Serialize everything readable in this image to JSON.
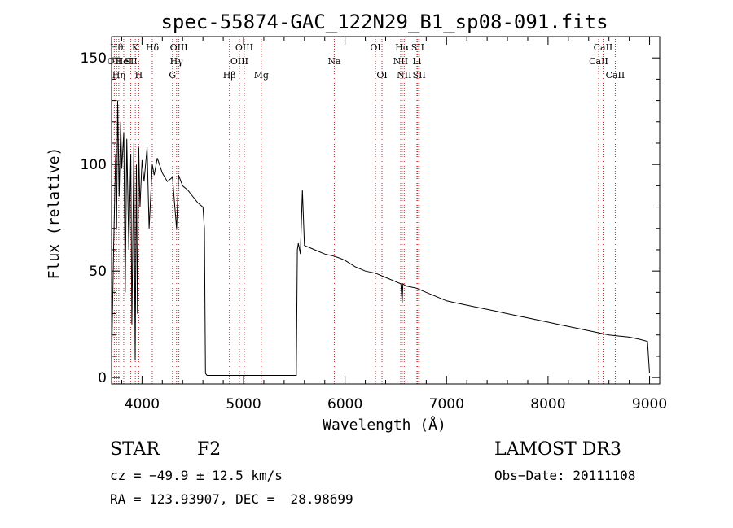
{
  "chart_data": {
    "type": "line",
    "title": "spec-55874-GAC_122N29_B1_sp08-091.fits",
    "xlabel": "Wavelength (Å)",
    "ylabel": "Flux (relative)",
    "xlim": [
      3700,
      9100
    ],
    "ylim": [
      -3,
      160
    ],
    "xticks": [
      4000,
      5000,
      6000,
      7000,
      8000,
      9000
    ],
    "yticks": [
      0,
      50,
      100,
      150
    ],
    "xtick_labels": [
      "4000",
      "5000",
      "6000",
      "7000",
      "8000",
      "9000"
    ],
    "ytick_labels": [
      "0",
      "50",
      "100",
      "150"
    ],
    "grid": false,
    "series": [
      {
        "name": "spectrum",
        "x": [
          3700,
          3720,
          3740,
          3750,
          3760,
          3775,
          3790,
          3800,
          3820,
          3835,
          3850,
          3870,
          3889,
          3900,
          3920,
          3933,
          3945,
          3955,
          3968,
          3980,
          4000,
          4020,
          4050,
          4070,
          4101,
          4120,
          4150,
          4200,
          4250,
          4300,
          4340,
          4360,
          4400,
          4450,
          4500,
          4550,
          4600,
          4615,
          4625,
          4640,
          5000,
          5520,
          5530,
          5540,
          5560,
          5580,
          5600,
          5650,
          5700,
          5800,
          5890,
          5950,
          6000,
          6100,
          6200,
          6300,
          6400,
          6500,
          6550,
          6563,
          6570,
          6600,
          6700,
          6800,
          6900,
          7000,
          7100,
          7200,
          7300,
          7400,
          7500,
          7600,
          7700,
          7800,
          7900,
          8000,
          8100,
          8200,
          8300,
          8400,
          8500,
          8600,
          8700,
          8800,
          8900,
          8980,
          9000
        ],
        "y": [
          5,
          60,
          105,
          70,
          130,
          85,
          120,
          98,
          115,
          40,
          112,
          60,
          105,
          25,
          110,
          8,
          100,
          30,
          108,
          80,
          102,
          92,
          108,
          70,
          100,
          95,
          103,
          96,
          92,
          94,
          70,
          95,
          90,
          88,
          85,
          82,
          80,
          70,
          2,
          1,
          1,
          1,
          60,
          63,
          58,
          88,
          62,
          61,
          60,
          58,
          57,
          56,
          55,
          52,
          50,
          49,
          47,
          45,
          44,
          35,
          44,
          43,
          42,
          40,
          38,
          36,
          35,
          34,
          33,
          32,
          31,
          30,
          29,
          28,
          27,
          26,
          25,
          24,
          23,
          22,
          21,
          20,
          19.5,
          19,
          18,
          17,
          2
        ]
      }
    ],
    "lines": [
      {
        "wave": 3727,
        "label": "OII",
        "row": 2
      },
      {
        "wave": 3750,
        "label": "Hθ",
        "row": 1
      },
      {
        "wave": 3771,
        "label": "Hη",
        "row": 3
      },
      {
        "wave": 3820,
        "label": "HeI",
        "row": 2
      },
      {
        "wave": 3889,
        "label": "SII",
        "row": 2
      },
      {
        "wave": 3934,
        "label": "K",
        "row": 1
      },
      {
        "wave": 3968,
        "label": "H",
        "row": 3
      },
      {
        "wave": 4101,
        "label": "Hδ",
        "row": 1
      },
      {
        "wave": 4300,
        "label": "G",
        "row": 3
      },
      {
        "wave": 4340,
        "label": "Hγ",
        "row": 2
      },
      {
        "wave": 4363,
        "label": "OIII",
        "row": 1
      },
      {
        "wave": 4861,
        "label": "Hβ",
        "row": 3
      },
      {
        "wave": 4959,
        "label": "OIII",
        "row": 2
      },
      {
        "wave": 5007,
        "label": "OIII",
        "row": 1
      },
      {
        "wave": 5175,
        "label": "Mg",
        "row": 3
      },
      {
        "wave": 5894,
        "label": "Na",
        "row": 2
      },
      {
        "wave": 6300,
        "label": "OI",
        "row": 1
      },
      {
        "wave": 6364,
        "label": "OI",
        "row": 3
      },
      {
        "wave": 6548,
        "label": "NII",
        "row": 2
      },
      {
        "wave": 6563,
        "label": "Hα",
        "row": 1
      },
      {
        "wave": 6583,
        "label": "NII",
        "row": 3
      },
      {
        "wave": 6716,
        "label": "SII",
        "row": 1
      },
      {
        "wave": 6731,
        "label": "SII",
        "row": 3
      },
      {
        "wave": 6708,
        "label": "Li",
        "row": 2
      },
      {
        "wave": 8498,
        "label": "CaII",
        "row": 2
      },
      {
        "wave": 8542,
        "label": "CaII",
        "row": 1
      },
      {
        "wave": 8662,
        "label": "CaII",
        "row": 3
      }
    ]
  },
  "info": {
    "class_label": "STAR",
    "subclass_label": "F2",
    "survey_label": "LAMOST DR3",
    "redshift_line": "cz = −49.9 ± 12.5 km/s",
    "obs_date_line": "Obs−Date: 20111108",
    "coords_line": "RA = 123.93907, DEC =  28.98699"
  },
  "colors": {
    "line_marker": "#c03030",
    "spectrum": "#000000",
    "frame": "#000000"
  }
}
